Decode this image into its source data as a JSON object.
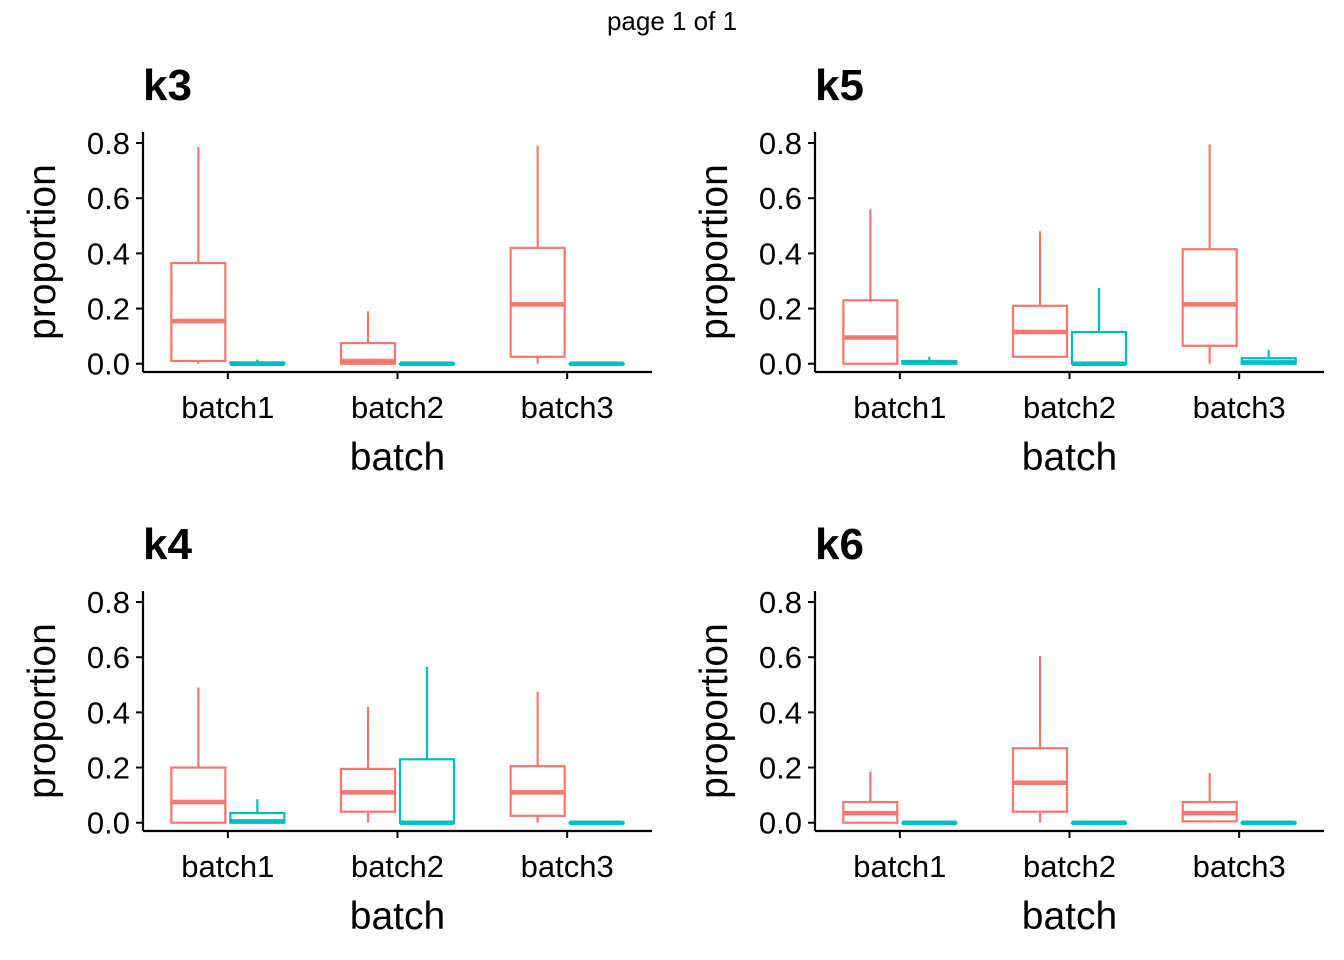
{
  "page_label": "page 1 of 1",
  "colors": {
    "series_a": "#F8766D",
    "series_b": "#00BFC4"
  },
  "chart_data": [
    {
      "type": "box",
      "title": "k3",
      "xlabel": "batch",
      "ylabel": "proportion",
      "categories": [
        "batch1",
        "batch2",
        "batch3"
      ],
      "ylim": [
        -0.03,
        0.84
      ],
      "yticks": [
        "0.0",
        "0.2",
        "0.4",
        "0.6",
        "0.8"
      ],
      "series": [
        {
          "color": "#F8766D",
          "boxes": [
            {
              "min": 0.0,
              "q1": 0.01,
              "median": 0.155,
              "q3": 0.365,
              "max": 0.785
            },
            {
              "min": 0.0,
              "q1": 0.0,
              "median": 0.01,
              "q3": 0.075,
              "max": 0.19
            },
            {
              "min": 0.0,
              "q1": 0.025,
              "median": 0.215,
              "q3": 0.42,
              "max": 0.79
            }
          ]
        },
        {
          "color": "#00BFC4",
          "boxes": [
            {
              "min": 0.0,
              "q1": 0.0,
              "median": 0.0,
              "q3": 0.005,
              "max": 0.015
            },
            {
              "min": 0.0,
              "q1": 0.0,
              "median": 0.0,
              "q3": 0.0,
              "max": 0.002
            },
            {
              "min": 0.0,
              "q1": 0.0,
              "median": 0.0,
              "q3": 0.0,
              "max": 0.002
            }
          ]
        }
      ]
    },
    {
      "type": "box",
      "title": "k5",
      "xlabel": "batch",
      "ylabel": "proportion",
      "categories": [
        "batch1",
        "batch2",
        "batch3"
      ],
      "ylim": [
        -0.03,
        0.84
      ],
      "yticks": [
        "0.0",
        "0.2",
        "0.4",
        "0.6",
        "0.8"
      ],
      "series": [
        {
          "color": "#F8766D",
          "boxes": [
            {
              "min": 0.0,
              "q1": 0.0,
              "median": 0.095,
              "q3": 0.23,
              "max": 0.56
            },
            {
              "min": 0.02,
              "q1": 0.025,
              "median": 0.115,
              "q3": 0.21,
              "max": 0.48
            },
            {
              "min": 0.0,
              "q1": 0.065,
              "median": 0.215,
              "q3": 0.415,
              "max": 0.795
            }
          ]
        },
        {
          "color": "#00BFC4",
          "boxes": [
            {
              "min": 0.0,
              "q1": 0.0,
              "median": 0.005,
              "q3": 0.01,
              "max": 0.025
            },
            {
              "min": 0.0,
              "q1": 0.0,
              "median": 0.0,
              "q3": 0.115,
              "max": 0.275
            },
            {
              "min": 0.0,
              "q1": 0.0,
              "median": 0.005,
              "q3": 0.02,
              "max": 0.05
            }
          ]
        }
      ]
    },
    {
      "type": "box",
      "title": "k4",
      "xlabel": "batch",
      "ylabel": "proportion",
      "categories": [
        "batch1",
        "batch2",
        "batch3"
      ],
      "ylim": [
        -0.03,
        0.84
      ],
      "yticks": [
        "0.0",
        "0.2",
        "0.4",
        "0.6",
        "0.8"
      ],
      "series": [
        {
          "color": "#F8766D",
          "boxes": [
            {
              "min": 0.0,
              "q1": 0.0,
              "median": 0.075,
              "q3": 0.2,
              "max": 0.49
            },
            {
              "min": 0.0,
              "q1": 0.04,
              "median": 0.11,
              "q3": 0.195,
              "max": 0.42
            },
            {
              "min": 0.0,
              "q1": 0.025,
              "median": 0.11,
              "q3": 0.205,
              "max": 0.475
            }
          ]
        },
        {
          "color": "#00BFC4",
          "boxes": [
            {
              "min": 0.0,
              "q1": 0.0,
              "median": 0.005,
              "q3": 0.035,
              "max": 0.085
            },
            {
              "min": 0.0,
              "q1": 0.0,
              "median": 0.0,
              "q3": 0.23,
              "max": 0.565
            },
            {
              "min": 0.0,
              "q1": 0.0,
              "median": 0.0,
              "q3": 0.0,
              "max": 0.002
            }
          ]
        }
      ]
    },
    {
      "type": "box",
      "title": "k6",
      "xlabel": "batch",
      "ylabel": "proportion",
      "categories": [
        "batch1",
        "batch2",
        "batch3"
      ],
      "ylim": [
        -0.03,
        0.84
      ],
      "yticks": [
        "0.0",
        "0.2",
        "0.4",
        "0.6",
        "0.8"
      ],
      "series": [
        {
          "color": "#F8766D",
          "boxes": [
            {
              "min": 0.0,
              "q1": 0.0,
              "median": 0.035,
              "q3": 0.075,
              "max": 0.185
            },
            {
              "min": 0.0,
              "q1": 0.04,
              "median": 0.145,
              "q3": 0.27,
              "max": 0.605
            },
            {
              "min": 0.0,
              "q1": 0.005,
              "median": 0.035,
              "q3": 0.075,
              "max": 0.18
            }
          ]
        },
        {
          "color": "#00BFC4",
          "boxes": [
            {
              "min": 0.0,
              "q1": 0.0,
              "median": 0.0,
              "q3": 0.0,
              "max": 0.002
            },
            {
              "min": 0.0,
              "q1": 0.0,
              "median": 0.0,
              "q3": 0.0,
              "max": 0.002
            },
            {
              "min": 0.0,
              "q1": 0.0,
              "median": 0.0,
              "q3": 0.0,
              "max": 0.002
            }
          ]
        }
      ]
    }
  ]
}
